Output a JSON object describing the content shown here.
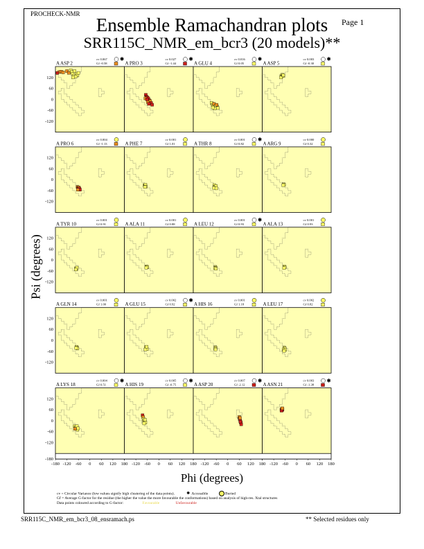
{
  "header": {
    "program": "PROCHECK-NMR",
    "page": "Page 1",
    "title": "Ensemble Ramachandran plots",
    "subtitle": "SRR115C_NMR_em_bcr3 (20 models)**"
  },
  "colors": {
    "panel_bg": "#ffffb3",
    "favourable": "#ffff66",
    "unfavourable": "#cc1f1a",
    "mid": "#e98c1f"
  },
  "legend": {
    "line1_text": "cv = Circular Variance (low values signify high clustering of the data points).",
    "accessible": "Accessible",
    "buried": "Buried",
    "line2": "Gf = Average G-factor for the residue (the higher the value the more favourable the conformations) based on analysis of high-res. Xtal structures",
    "line3_text": "Data points coloured according to G-factor:",
    "favourable": "Favourable",
    "unfavourable": "Unfavourable"
  },
  "footer": {
    "file": "SRR115C_NMR_em_bcr3_08_ensramach.ps",
    "note": "** Selected residues only"
  },
  "chart_data": {
    "type": "scatter",
    "xlabel": "Phi (degrees)",
    "ylabel": "Psi (degrees)",
    "xlim": [
      -180,
      180
    ],
    "ylim": [
      -180,
      180
    ],
    "y_ticks": [
      120,
      60,
      0,
      -60,
      -120
    ],
    "x_ticks": [
      -180,
      -120,
      -60,
      0,
      60,
      120,
      180
    ],
    "x_tick_labels": [
      "-180",
      "-120",
      "-60",
      "0",
      "60",
      "120",
      "180"
    ],
    "panels": [
      {
        "residue": "A ASP 2",
        "cv": "cv 0.067",
        "gf": "Gf -0.58",
        "access": "accessible",
        "gf_color": "mid",
        "points": [
          [
            -160,
            150,
            "mid"
          ],
          [
            -150,
            152,
            "mid"
          ],
          [
            -140,
            148,
            "mid"
          ],
          [
            -120,
            155,
            "mid"
          ],
          [
            -100,
            160,
            "fav"
          ],
          [
            -95,
            150,
            "fav"
          ],
          [
            -90,
            140,
            "fav"
          ],
          [
            -85,
            130,
            "fav"
          ],
          [
            -80,
            155,
            "fav"
          ],
          [
            -70,
            140,
            "fav"
          ],
          [
            -65,
            132,
            "fav"
          ],
          [
            -60,
            145,
            "fav"
          ],
          [
            -110,
            145,
            "mid"
          ],
          [
            -75,
            125,
            "fav"
          ],
          [
            -170,
            145,
            "unf"
          ],
          [
            -88,
            120,
            "fav"
          ]
        ]
      },
      {
        "residue": "A PRO 3",
        "cv": "cv 0.027",
        "gf": "Gf -1.44",
        "access": "accessible",
        "gf_color": "unf",
        "points": [
          [
            -68,
            25,
            "unf"
          ],
          [
            -65,
            15,
            "unf"
          ],
          [
            -60,
            10,
            "unf"
          ],
          [
            -55,
            5,
            "unf"
          ],
          [
            -70,
            5,
            "mid"
          ],
          [
            -50,
            -5,
            "unf"
          ],
          [
            -45,
            -10,
            "mid"
          ],
          [
            -40,
            -20,
            "unf"
          ],
          [
            -35,
            -30,
            "unf"
          ],
          [
            -58,
            -15,
            "mid"
          ],
          [
            -62,
            0,
            "unf"
          ],
          [
            -52,
            -25,
            "unf"
          ]
        ]
      },
      {
        "residue": "A GLU 4",
        "cv": "cv 0.016",
        "gf": "Gf 0.05",
        "access": "accessible",
        "gf_color": "fav",
        "points": [
          [
            -85,
            -20,
            "fav"
          ],
          [
            -80,
            -30,
            "fav"
          ],
          [
            -75,
            -35,
            "fav"
          ],
          [
            -70,
            -40,
            "fav"
          ],
          [
            -65,
            -30,
            "fav"
          ],
          [
            -60,
            -45,
            "fav"
          ],
          [
            -55,
            -40,
            "fav"
          ],
          [
            -72,
            -25,
            "mid"
          ],
          [
            -68,
            -50,
            "fav"
          ],
          [
            -62,
            -35,
            "fav"
          ],
          [
            -58,
            -30,
            "mid"
          ],
          [
            -78,
            -45,
            "fav"
          ],
          [
            -52,
            -48,
            "fav"
          ]
        ]
      },
      {
        "residue": "A ASP 5",
        "cv": "cv 0.003",
        "gf": "Gf -0.30",
        "access": "accessible",
        "gf_color": "fav",
        "points": [
          [
            -80,
            130,
            "fav"
          ],
          [
            -78,
            125,
            "fav"
          ],
          [
            -75,
            135,
            "fav"
          ],
          [
            -72,
            128,
            "fav"
          ],
          [
            -82,
            120,
            "fav"
          ],
          [
            -70,
            132,
            "fav"
          ]
        ]
      },
      {
        "residue": "A PRO 6",
        "cv": "cv 0.004",
        "gf": "Gf -1.13",
        "access": "buried",
        "gf_color": "mid",
        "points": [
          [
            -65,
            -40,
            "mid"
          ],
          [
            -62,
            -45,
            "unf"
          ],
          [
            -60,
            -50,
            "unf"
          ],
          [
            -58,
            -42,
            "mid"
          ],
          [
            -55,
            -48,
            "unf"
          ],
          [
            -52,
            -55,
            "unf"
          ],
          [
            -63,
            -55,
            "mid"
          ]
        ]
      },
      {
        "residue": "A PHE 7",
        "cv": "cv 0.001",
        "gf": "Gf 1.01",
        "access": "buried",
        "gf_color": "fav",
        "points": [
          [
            -75,
            -30,
            "fav"
          ],
          [
            -72,
            -35,
            "fav"
          ],
          [
            -70,
            -28,
            "fav"
          ],
          [
            -68,
            -38,
            "fav"
          ],
          [
            -73,
            -40,
            "fav"
          ]
        ]
      },
      {
        "residue": "A THR 8",
        "cv": "cv 0.001",
        "gf": "Gf 0.82",
        "access": "accessible",
        "gf_color": "fav",
        "points": [
          [
            -70,
            -30,
            "fav"
          ],
          [
            -68,
            -38,
            "fav"
          ],
          [
            -65,
            -42,
            "fav"
          ],
          [
            -62,
            -35,
            "fav"
          ],
          [
            -72,
            -45,
            "fav"
          ],
          [
            -60,
            -48,
            "fav"
          ]
        ]
      },
      {
        "residue": "A ARG 9",
        "cv": "cv 0.000",
        "gf": "Gf 0.32",
        "access": "buried",
        "gf_color": "fav",
        "points": [
          [
            -68,
            -25,
            "fav"
          ],
          [
            -66,
            -28,
            "fav"
          ],
          [
            -70,
            -30,
            "fav"
          ]
        ]
      },
      {
        "residue": "A TYR 10",
        "cv": "cv 0.001",
        "gf": "Gf 0.91",
        "access": "buried",
        "gf_color": "fav",
        "points": [
          [
            -72,
            -45,
            "fav"
          ],
          [
            -70,
            -50,
            "fav"
          ],
          [
            -68,
            -42,
            "fav"
          ],
          [
            -74,
            -52,
            "fav"
          ]
        ]
      },
      {
        "residue": "A ALA 11",
        "cv": "cv 0.001",
        "gf": "Gf 0.88",
        "access": "buried",
        "gf_color": "fav",
        "points": [
          [
            -65,
            -35,
            "fav"
          ],
          [
            -62,
            -40,
            "fav"
          ],
          [
            -60,
            -38,
            "fav"
          ],
          [
            -66,
            -42,
            "fav"
          ]
        ]
      },
      {
        "residue": "A LEU 12",
        "cv": "cv 0.001",
        "gf": "Gf 0.93",
        "access": "accessible",
        "gf_color": "fav",
        "points": [
          [
            -65,
            -38,
            "fav"
          ],
          [
            -63,
            -42,
            "fav"
          ],
          [
            -67,
            -45,
            "fav"
          ],
          [
            -62,
            -48,
            "fav"
          ]
        ]
      },
      {
        "residue": "A ALA 13",
        "cv": "cv 0.001",
        "gf": "Gf 0.93",
        "access": "buried",
        "gf_color": "fav",
        "points": [
          [
            -65,
            -35,
            "fav"
          ],
          [
            -62,
            -40,
            "fav"
          ],
          [
            -66,
            -44,
            "fav"
          ]
        ]
      },
      {
        "residue": "A GLN 14",
        "cv": "cv 0.001",
        "gf": "Gf 1.00",
        "access": "buried",
        "gf_color": "fav",
        "points": [
          [
            -70,
            -35,
            "fav"
          ],
          [
            -68,
            -40,
            "fav"
          ],
          [
            -65,
            -45,
            "fav"
          ],
          [
            -72,
            -42,
            "fav"
          ]
        ]
      },
      {
        "residue": "A GLU 15",
        "cv": "cv 0.002",
        "gf": "Gf 0.92",
        "access": "accessible",
        "gf_color": "fav",
        "points": [
          [
            -68,
            -38,
            "fav"
          ],
          [
            -65,
            -42,
            "fav"
          ],
          [
            -62,
            -48,
            "fav"
          ],
          [
            -70,
            -50,
            "fav"
          ],
          [
            -64,
            -35,
            "fav"
          ]
        ]
      },
      {
        "residue": "A HIS 16",
        "cv": "cv 0.001",
        "gf": "Gf 1.18",
        "access": "buried",
        "gf_color": "fav",
        "points": [
          [
            -65,
            -38,
            "fav"
          ],
          [
            -63,
            -42,
            "fav"
          ],
          [
            -66,
            -46,
            "fav"
          ],
          [
            -64,
            -50,
            "fav"
          ]
        ]
      },
      {
        "residue": "A LEU 17",
        "cv": "cv 0.002",
        "gf": "Gf 0.82",
        "access": "buried",
        "gf_color": "fav",
        "points": [
          [
            -65,
            -40,
            "fav"
          ],
          [
            -62,
            -45,
            "fav"
          ],
          [
            -68,
            -50,
            "fav"
          ],
          [
            -60,
            -52,
            "fav"
          ],
          [
            -66,
            -58,
            "fav"
          ]
        ]
      },
      {
        "residue": "A LYS 18",
        "cv": "cv 0.004",
        "gf": "Gf 0.51",
        "access": "accessible",
        "gf_color": "fav",
        "points": [
          [
            -80,
            -30,
            "fav"
          ],
          [
            -75,
            -35,
            "fav"
          ],
          [
            -72,
            -40,
            "fav"
          ],
          [
            -70,
            -45,
            "fav"
          ],
          [
            -68,
            -30,
            "fav"
          ],
          [
            -65,
            -50,
            "fav"
          ],
          [
            -62,
            -42,
            "fav"
          ],
          [
            -78,
            -45,
            "mid"
          ]
        ]
      },
      {
        "residue": "A HIS 19",
        "cv": "cv 0.005",
        "gf": "Gf -0.75",
        "access": "accessible",
        "gf_color": "fav",
        "points": [
          [
            -85,
            30,
            "unf"
          ],
          [
            -82,
            20,
            "mid"
          ],
          [
            -80,
            10,
            "fav"
          ],
          [
            -78,
            0,
            "fav"
          ],
          [
            -75,
            -5,
            "fav"
          ],
          [
            -70,
            -10,
            "fav"
          ],
          [
            -72,
            5,
            "fav"
          ],
          [
            -77,
            -15,
            "fav"
          ]
        ]
      },
      {
        "residue": "A ASP 20",
        "cv": "cv 0.007",
        "gf": "Gf -2.12",
        "access": "accessible",
        "gf_color": "unf",
        "points": [
          [
            60,
            20,
            "mid"
          ],
          [
            62,
            10,
            "unf"
          ],
          [
            65,
            0,
            "unf"
          ],
          [
            68,
            -10,
            "unf"
          ],
          [
            70,
            -20,
            "unf"
          ],
          [
            66,
            -5,
            "unf"
          ],
          [
            64,
            15,
            "mid"
          ]
        ]
      },
      {
        "residue": "A ASN 21",
        "cv": "cv 0.003",
        "gf": "Gf -1.38",
        "access": "accessible",
        "gf_color": "unf",
        "points": [
          [
            -80,
            60,
            "unf"
          ],
          [
            -78,
            65,
            "mid"
          ],
          [
            -76,
            58,
            "unf"
          ],
          [
            -74,
            62,
            "unf"
          ],
          [
            -79,
            55,
            "unf"
          ],
          [
            -75,
            68,
            "mid"
          ]
        ]
      }
    ]
  }
}
